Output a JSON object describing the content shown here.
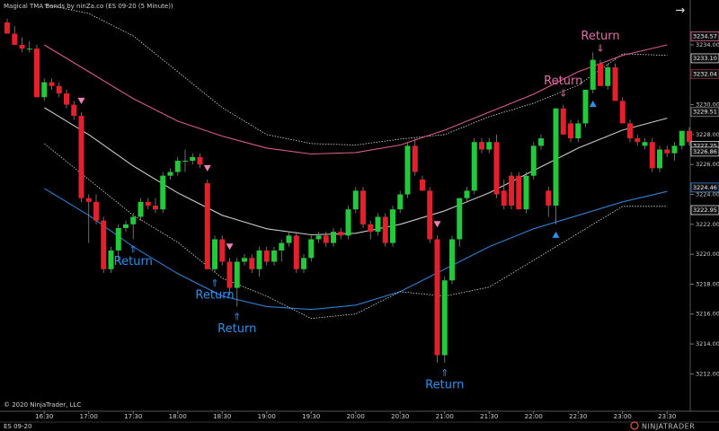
{
  "chart_data": {
    "type": "candlestick",
    "title": "Magical TMA Bands by ninZa.co (ES 09-20 (5 Minute))",
    "copyright": "© 2020 NinjaTrader, LLC",
    "instrument": "ES 09-20",
    "logo": "NINJATRADER",
    "nav_arrow": "→",
    "up_color": "#22c93a",
    "down_color": "#e3202b",
    "categories": [
      null,
      null,
      null,
      null,
      null,
      "16:30",
      null,
      null,
      null,
      null,
      null,
      "17:00",
      null,
      null,
      null,
      null,
      null,
      "17:30",
      null,
      null,
      null,
      null,
      null,
      "18:00",
      null,
      null,
      null,
      null,
      null,
      "18:30",
      null,
      null,
      null,
      null,
      null,
      "19:00",
      null,
      null,
      null,
      null,
      null,
      "19:30",
      null,
      null,
      null,
      null,
      null,
      "20:00",
      null,
      null,
      null,
      null,
      null,
      "20:30",
      null,
      null,
      null,
      null,
      null,
      "21:00",
      null,
      null,
      null,
      null,
      null,
      "21:30",
      null,
      null,
      null,
      null,
      null,
      "22:00",
      null,
      null,
      null,
      null,
      null,
      "22:30",
      null,
      null,
      null,
      null,
      null,
      "23:00",
      null,
      null,
      null,
      null,
      null,
      "23:30",
      null,
      null,
      null
    ],
    "open": [
      3235.5,
      3234.75,
      3234,
      3233.75,
      3233.75,
      3230.5,
      3231.5,
      3231.25,
      3230.75,
      3230,
      3229.25,
      3223.75,
      3223.5,
      3222.25,
      3219,
      3220.25,
      3221.75,
      3222,
      3222.5,
      3223.5,
      3223.25,
      3223,
      3225.25,
      3225.5,
      3226.25,
      3226.25,
      3226.5,
      3224.75,
      3219,
      3221,
      3219.5,
      3217.75,
      3219.5,
      3219.75,
      3219,
      3220.25,
      3219.5,
      3220.25,
      3220.75,
      3221.25,
      3219,
      3219.75,
      3221,
      3221.25,
      3220.75,
      3221.5,
      3221.25,
      3223,
      3224.25,
      3222,
      3221.5,
      3222.5,
      3220.75,
      3223,
      3224,
      3227.25,
      3225,
      3224.25,
      3221,
      3213.25,
      3218.25,
      3221,
      3223.75,
      3224.25,
      3227.5,
      3227,
      3227.5,
      3224.25,
      3225.25,
      3225.25,
      3223,
      3225.25,
      3227.25,
      3224.25,
      3223.25,
      3229.75,
      3228.75,
      3227.75,
      3228.75,
      3231,
      3232.75,
      3231.25,
      3232.5,
      3230.25,
      3228.75,
      3227.75,
      3227.25,
      3227.5,
      3225.75,
      3227,
      3226.75,
      3227.25,
      3228.25
    ],
    "high": [
      3235.75,
      3235.25,
      3234.5,
      3234.25,
      3234,
      3231.75,
      3231.75,
      3231.5,
      3231,
      3230.25,
      3229.5,
      3224,
      3224,
      3222.5,
      3220.5,
      3222,
      3222.25,
      3222.75,
      3223.75,
      3223.75,
      3223.75,
      3225.5,
      3225.75,
      3226.5,
      3227,
      3226.75,
      3226.75,
      3225,
      3221.25,
      3221.25,
      3219.75,
      3219.75,
      3220,
      3220,
      3220.5,
      3220.5,
      3220.5,
      3221,
      3221.5,
      3221.5,
      3220,
      3221.25,
      3221.5,
      3221.5,
      3221.75,
      3221.75,
      3223.25,
      3224.5,
      3224.5,
      3222.25,
      3222.75,
      3222.75,
      3223.25,
      3224.25,
      3227.5,
      3227.75,
      3225.25,
      3224.5,
      3221.25,
      3218.5,
      3221.25,
      3223.75,
      3224.5,
      3227.75,
      3227.75,
      3227.75,
      3228,
      3225,
      3225.5,
      3225.5,
      3225.5,
      3227.5,
      3228,
      3224.5,
      3229.75,
      3230,
      3229,
      3229,
      3231,
      3233.5,
      3233,
      3232.75,
      3232.75,
      3230.5,
      3229,
      3228,
      3227.75,
      3227.75,
      3227.25,
      3227.25,
      3227.5,
      3228.25,
      3228.5
    ],
    "low": [
      3234.75,
      3234,
      3233.5,
      3233.5,
      3230.5,
      3230.25,
      3231,
      3230.5,
      3229.75,
      3229,
      3223.5,
      3220.75,
      3222,
      3218.75,
      3218.75,
      3219.5,
      3221.5,
      3221,
      3222.25,
      3223,
      3222.75,
      3222.75,
      3225,
      3225.25,
      3225.5,
      3226,
      3225.75,
      3219,
      3218.75,
      3219.25,
      3217.25,
      3216.5,
      3219.25,
      3218.75,
      3218.5,
      3219.25,
      3219.25,
      3219.5,
      3220.5,
      3218.75,
      3218.75,
      3219.5,
      3220.75,
      3220.5,
      3220.5,
      3221,
      3221,
      3222.75,
      3221.75,
      3221,
      3221.25,
      3220.5,
      3220.5,
      3222.75,
      3223.75,
      3225.25,
      3224.25,
      3220.75,
      3212.75,
      3212.75,
      3218,
      3220.5,
      3223.5,
      3224,
      3226.75,
      3226.75,
      3223.75,
      3223,
      3223,
      3223,
      3222.75,
      3225,
      3227,
      3222.5,
      3222,
      3228,
      3227.5,
      3227.5,
      3228.5,
      3230.75,
      3231.25,
      3231,
      3230.25,
      3228.75,
      3227.5,
      3227.25,
      3227,
      3225.5,
      3225.5,
      3226.5,
      3226.25,
      3227,
      3227.25
    ],
    "close": [
      3234.75,
      3234,
      3233.75,
      3233.75,
      3230.5,
      3231.5,
      3231.25,
      3230.75,
      3230,
      3229.25,
      3223.75,
      3223.5,
      3222.25,
      3219,
      3220.25,
      3221.75,
      3222,
      3222.5,
      3223.5,
      3223.25,
      3223,
      3225.25,
      3225.5,
      3226.25,
      3226.25,
      3226.5,
      3226,
      3219,
      3221,
      3219.5,
      3217.75,
      3219.5,
      3219.75,
      3219,
      3220.25,
      3219.5,
      3220.25,
      3220.75,
      3221.25,
      3219,
      3219.75,
      3221,
      3221.25,
      3220.75,
      3221.5,
      3221.25,
      3223,
      3224.25,
      3222,
      3221.5,
      3222.5,
      3220.75,
      3223,
      3224,
      3227.25,
      3225.5,
      3224.25,
      3221,
      3213.25,
      3218.25,
      3221,
      3223.75,
      3224.25,
      3227.5,
      3227,
      3227.5,
      3224,
      3223.25,
      3223.25,
      3223,
      3225.25,
      3227.25,
      3227.75,
      3223.25,
      3229.75,
      3228,
      3227.75,
      3228.75,
      3231,
      3233,
      3231.25,
      3232.5,
      3230.25,
      3228.75,
      3227.75,
      3227.5,
      3227.5,
      3225.75,
      3227,
      3226.75,
      3227.25,
      3228.25,
      3227.5
    ],
    "band_x": [
      "16:30",
      "17:00",
      "17:30",
      "18:00",
      "18:30",
      "19:00",
      "19:30",
      "20:00",
      "20:30",
      "21:00",
      "21:30",
      "22:00",
      "22:30",
      "23:00",
      "23:30"
    ],
    "bands": [
      {
        "color": "#d9d9d9",
        "style": "dotted",
        "values": [
          3236.7,
          3236.1,
          3234.6,
          3232.2,
          3229.8,
          3228,
          3227.4,
          3227.3,
          3227.7,
          3228,
          3229.2,
          3230.1,
          3231.3,
          3233.4,
          3233.3
        ]
      },
      {
        "color": "#d65c8c",
        "style": "solid",
        "values": [
          3234,
          3232.2,
          3230.4,
          3228.9,
          3227.9,
          3227.1,
          3226.7,
          3226.8,
          3227.3,
          3228.3,
          3229.5,
          3230.7,
          3232.2,
          3233.3,
          3234
        ]
      },
      {
        "color": "#c8c8c8",
        "style": "solid",
        "values": [
          3229.8,
          3228,
          3225.9,
          3224.1,
          3222.6,
          3221.7,
          3221.3,
          3221.4,
          3222,
          3222.9,
          3224.1,
          3225.6,
          3227.1,
          3228.3,
          3229.1
        ]
      },
      {
        "color": "#2f7fd0",
        "style": "solid",
        "values": [
          3224.4,
          3222.6,
          3220.5,
          3218.7,
          3217.2,
          3216.5,
          3216.3,
          3216.6,
          3217.5,
          3219,
          3220.5,
          3221.7,
          3222.6,
          3223.5,
          3224.2
        ]
      },
      {
        "color": "#d9d9d9",
        "style": "dotted",
        "values": [
          3227.4,
          3225,
          3222.6,
          3220.8,
          3218.4,
          3217.2,
          3215.7,
          3216,
          3217.5,
          3217.2,
          3217.8,
          3219.6,
          3221.4,
          3223.2,
          3223.2
        ]
      }
    ],
    "signals": [
      {
        "bar": 17,
        "direction": "up",
        "arrow": "⇑",
        "label": "Return",
        "color": "#2f8fe8"
      },
      {
        "bar": 28,
        "direction": "up",
        "arrow": "⇑",
        "label": "Return",
        "color": "#2f8fe8"
      },
      {
        "bar": 31,
        "direction": "up",
        "arrow": "⇑",
        "label": "Return",
        "color": "#2f8fe8"
      },
      {
        "bar": 59,
        "direction": "up",
        "arrow": "⇑",
        "label": "Return",
        "color": "#2f8fe8"
      },
      {
        "bar": 75,
        "direction": "down",
        "arrow": "⇓",
        "label": "Return",
        "color": "#e070a8"
      },
      {
        "bar": 80,
        "direction": "down",
        "arrow": "⇓",
        "label": "Return",
        "color": "#e070a8"
      }
    ],
    "markers": [
      {
        "bar": 10,
        "direction": "down",
        "color": "#f080b8"
      },
      {
        "bar": 27,
        "direction": "down",
        "color": "#f080b8"
      },
      {
        "bar": 30,
        "direction": "down",
        "color": "#f080b8"
      },
      {
        "bar": 58,
        "direction": "down",
        "color": "#f080b8"
      },
      {
        "bar": 74,
        "direction": "up",
        "color": "#2f8fe8"
      },
      {
        "bar": 79,
        "direction": "up",
        "color": "#2f8fe8"
      }
    ],
    "ylim": [
      3209.5,
      3237
    ],
    "yticks": [
      {
        "value": 3212,
        "label": "3212.00"
      },
      {
        "value": 3214,
        "label": "3214.00"
      },
      {
        "value": 3216,
        "label": "3216.00"
      },
      {
        "value": 3218,
        "label": "3218.00"
      },
      {
        "value": 3220,
        "label": "3220.00"
      },
      {
        "value": 3222,
        "label": "3222.00"
      },
      {
        "value": 3224,
        "label": "3224.00"
      },
      {
        "value": 3226,
        "label": "3226.00"
      },
      {
        "value": 3228,
        "label": "3228.00"
      },
      {
        "value": 3230,
        "label": "3230.00"
      },
      {
        "value": 3232,
        "label": "3232.00"
      },
      {
        "value": 3234,
        "label": "3234.00"
      }
    ],
    "price_labels": [
      {
        "value": 3234.57,
        "label": "3234.57",
        "color": "#d65c8c"
      },
      {
        "value": 3233.1,
        "label": "3233.10",
        "color": "#d9d9d9"
      },
      {
        "value": 3232.04,
        "label": "3232.04",
        "color": "#8a2a3a"
      },
      {
        "value": 3229.51,
        "label": "3229.51",
        "color": "#888888"
      },
      {
        "value": 3227.25,
        "label": "3227.25",
        "color": "#d9d9d9"
      },
      {
        "value": 3226.86,
        "label": "3226.86",
        "color": "#c8c8c8"
      },
      {
        "value": 3224.46,
        "label": "3224.46",
        "color": "#2f7fd0"
      },
      {
        "value": 3222.95,
        "label": "3222.95",
        "color": "#d9d9d9"
      }
    ]
  }
}
